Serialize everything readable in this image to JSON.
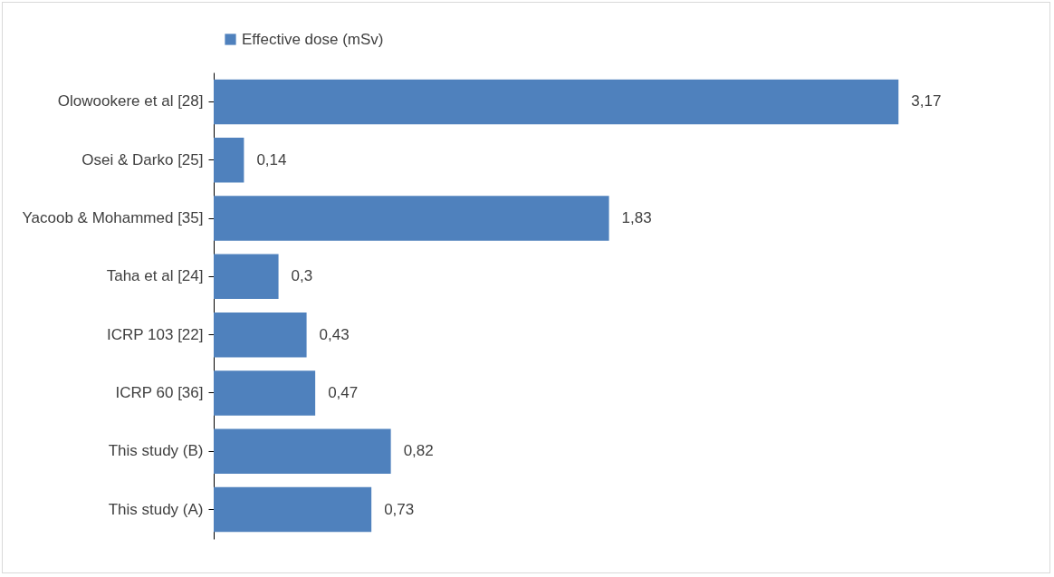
{
  "chart_data": {
    "type": "bar",
    "orientation": "horizontal",
    "legend": "top",
    "categories": [
      "Olowookere et al [28]",
      "Osei & Darko [25]",
      "Yacoob & Mohammed [35]",
      "Taha et al [24]",
      "ICRP 103 [22]",
      "ICRP 60 [36]",
      "This study (B)",
      "This study (A)"
    ],
    "series": [
      {
        "name": "Effective dose (mSv)",
        "color": "#4f81bd",
        "values": [
          3.17,
          0.14,
          1.83,
          0.3,
          0.43,
          0.47,
          0.82,
          0.73
        ],
        "value_labels": [
          "3,17",
          "0,14",
          "1,83",
          "0,3",
          "0,43",
          "0,47",
          "0,82",
          "0,73"
        ]
      }
    ]
  }
}
